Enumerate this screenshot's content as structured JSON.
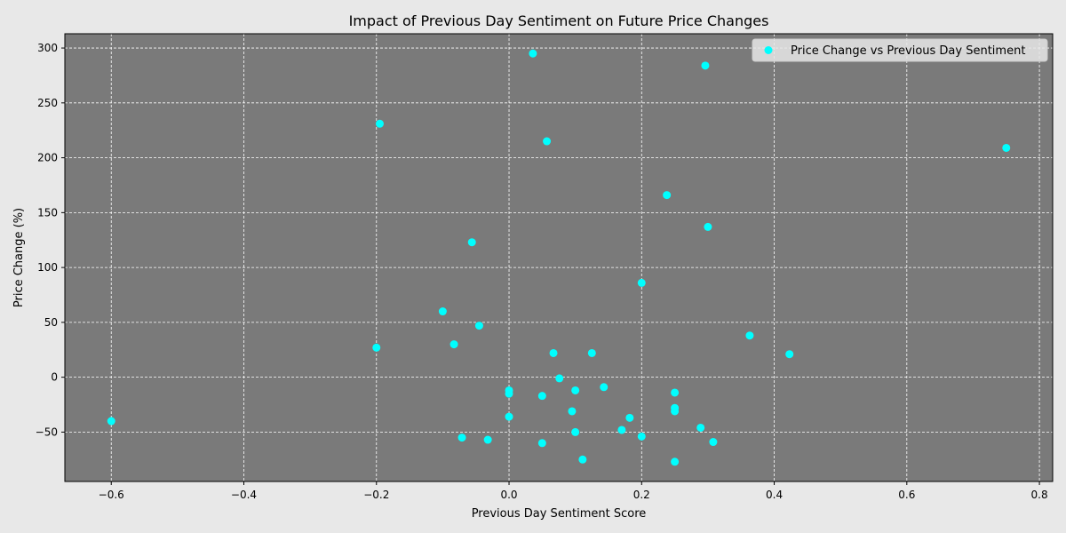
{
  "chart_data": {
    "type": "scatter",
    "title": "Impact of Previous Day Sentiment on Future Price Changes",
    "xlabel": "Previous Day Sentiment Score",
    "ylabel": "Price Change (%)",
    "xlim": [
      -0.67,
      0.82
    ],
    "ylim": [
      -95,
      313
    ],
    "x_ticks": [
      -0.6,
      -0.4,
      -0.2,
      0.0,
      0.2,
      0.4,
      0.6,
      0.8
    ],
    "x_tick_labels": [
      "−0.6",
      "−0.4",
      "−0.2",
      "0.0",
      "0.2",
      "0.4",
      "0.6",
      "0.8"
    ],
    "y_ticks": [
      -50,
      0,
      50,
      100,
      150,
      200,
      250,
      300
    ],
    "y_tick_labels": [
      "−50",
      "0",
      "50",
      "100",
      "150",
      "200",
      "250",
      "300"
    ],
    "grid": true,
    "legend_position": "top-right",
    "background_color": "#7a7a7a",
    "figure_color": "#e8e8e8",
    "series": [
      {
        "name": "Price Change vs Previous Day Sentiment",
        "color": "#00ffff",
        "points": [
          {
            "x": -0.6,
            "y": -40
          },
          {
            "x": -0.2,
            "y": 27
          },
          {
            "x": -0.195,
            "y": 231
          },
          {
            "x": -0.1,
            "y": 60
          },
          {
            "x": -0.083,
            "y": 30
          },
          {
            "x": -0.071,
            "y": -55
          },
          {
            "x": -0.056,
            "y": 123
          },
          {
            "x": -0.045,
            "y": 47
          },
          {
            "x": -0.032,
            "y": -57
          },
          {
            "x": 0.0,
            "y": -12
          },
          {
            "x": 0.0,
            "y": -15
          },
          {
            "x": 0.0,
            "y": -36
          },
          {
            "x": 0.036,
            "y": 295
          },
          {
            "x": 0.05,
            "y": -17
          },
          {
            "x": 0.05,
            "y": -60
          },
          {
            "x": 0.057,
            "y": 215
          },
          {
            "x": 0.067,
            "y": 22
          },
          {
            "x": 0.076,
            "y": -1
          },
          {
            "x": 0.095,
            "y": -31
          },
          {
            "x": 0.1,
            "y": -12
          },
          {
            "x": 0.1,
            "y": -50
          },
          {
            "x": 0.111,
            "y": -75
          },
          {
            "x": 0.125,
            "y": 22
          },
          {
            "x": 0.143,
            "y": -9
          },
          {
            "x": 0.17,
            "y": -48
          },
          {
            "x": 0.182,
            "y": -37
          },
          {
            "x": 0.2,
            "y": 86
          },
          {
            "x": 0.2,
            "y": -54
          },
          {
            "x": 0.238,
            "y": 166
          },
          {
            "x": 0.25,
            "y": -14
          },
          {
            "x": 0.25,
            "y": -28
          },
          {
            "x": 0.25,
            "y": -31
          },
          {
            "x": 0.25,
            "y": -77
          },
          {
            "x": 0.289,
            "y": -46
          },
          {
            "x": 0.296,
            "y": 284
          },
          {
            "x": 0.3,
            "y": 137
          },
          {
            "x": 0.308,
            "y": -59
          },
          {
            "x": 0.363,
            "y": 38
          },
          {
            "x": 0.423,
            "y": 21
          },
          {
            "x": 0.75,
            "y": 209
          }
        ]
      }
    ]
  }
}
